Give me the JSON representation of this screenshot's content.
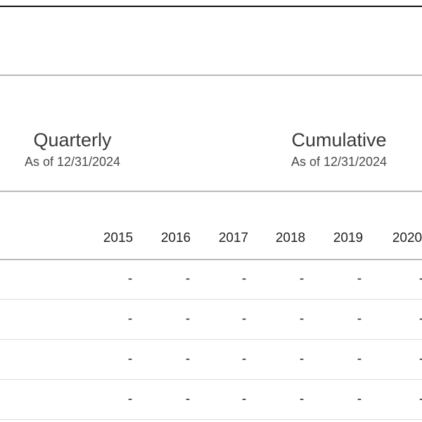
{
  "groups": {
    "quarterly": {
      "title": "Quarterly",
      "as_of": "As of 12/31/2024"
    },
    "cumulative": {
      "title": "Cumulative",
      "as_of": "As of 12/31/2024"
    }
  },
  "table": {
    "years": [
      "2015",
      "2016",
      "2017",
      "2018",
      "2019",
      "2020"
    ],
    "rows": [
      [
        "-",
        "-",
        "-",
        "-",
        "-",
        "-"
      ],
      [
        "-",
        "-",
        "-",
        "-",
        "-",
        "-"
      ],
      [
        "-",
        "-",
        "-",
        "-",
        "-",
        "-"
      ],
      [
        "-",
        "-",
        "-",
        "-",
        "-",
        "-"
      ]
    ]
  }
}
